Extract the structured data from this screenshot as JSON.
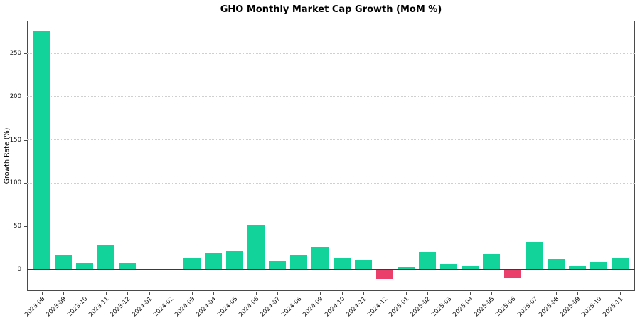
{
  "page": {
    "title": "GHO Monthly Market Cap Growth (MoM %)"
  },
  "chart_data": {
    "type": "bar",
    "title": "GHO Monthly Market Cap Growth (MoM %)",
    "xlabel": "",
    "ylabel": "Growth Rate (%)",
    "categories": [
      "2023-08",
      "2023-09",
      "2023-10",
      "2023-11",
      "2023-12",
      "2024-01",
      "2024-02",
      "2024-03",
      "2024-04",
      "2024-05",
      "2024-06",
      "2024-07",
      "2024-08",
      "2024-09",
      "2024-10",
      "2024-11",
      "2024-12",
      "2025-01",
      "2025-02",
      "2025-03",
      "2025-04",
      "2025-05",
      "2025-06",
      "2025-07",
      "2025-08",
      "2025-09",
      "2025-10",
      "2025-11"
    ],
    "values": [
      276,
      17,
      8,
      28,
      8,
      0,
      0,
      13,
      19,
      21,
      52,
      10,
      16,
      26,
      14,
      11,
      -11,
      3,
      20,
      6,
      3.5,
      18,
      -10,
      32,
      12,
      4,
      8.5,
      13
    ],
    "yticks": [
      0,
      50,
      100,
      150,
      200,
      250
    ],
    "ylim": [
      -25,
      288
    ],
    "grid": "horizontal dotted",
    "legend": "none",
    "bar_color_positive": "#12d49a",
    "bar_color_negative": "#ea3f6b",
    "zero_line": true
  }
}
